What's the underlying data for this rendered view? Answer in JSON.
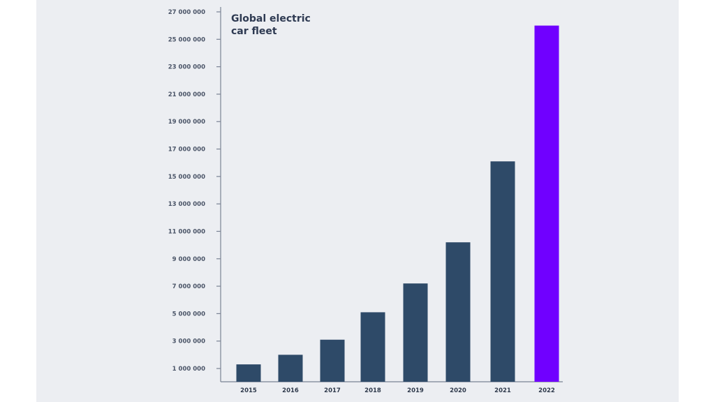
{
  "chart_data": {
    "type": "bar",
    "title_lines": [
      "Global electric",
      "car fleet"
    ],
    "categories": [
      "2015",
      "2016",
      "2017",
      "2018",
      "2019",
      "2020",
      "2021",
      "2022"
    ],
    "values": [
      1300000,
      2000000,
      3100000,
      5100000,
      7200000,
      10200000,
      16100000,
      26000000
    ],
    "highlight_index": 7,
    "ylim": [
      0,
      27000000
    ],
    "yticks": [
      1000000,
      3000000,
      5000000,
      7000000,
      9000000,
      11000000,
      13000000,
      15000000,
      17000000,
      19000000,
      21000000,
      23000000,
      25000000,
      27000000
    ],
    "ytick_labels": [
      "1 000 000",
      "3 000 000",
      "5 000 000",
      "7 000 000",
      "9 000 000",
      "11 000 000",
      "13 000 000",
      "15 000 000",
      "17 000 000",
      "19 000 000",
      "21 000 000",
      "23 000 000",
      "25 000 000",
      "27 000 000"
    ],
    "xlabel": "",
    "ylabel": "",
    "grid": false,
    "colors": {
      "bar": "#2e4a68",
      "highlight": "#7000ff",
      "axis": "#7a8394",
      "background": "#eceef2"
    }
  }
}
